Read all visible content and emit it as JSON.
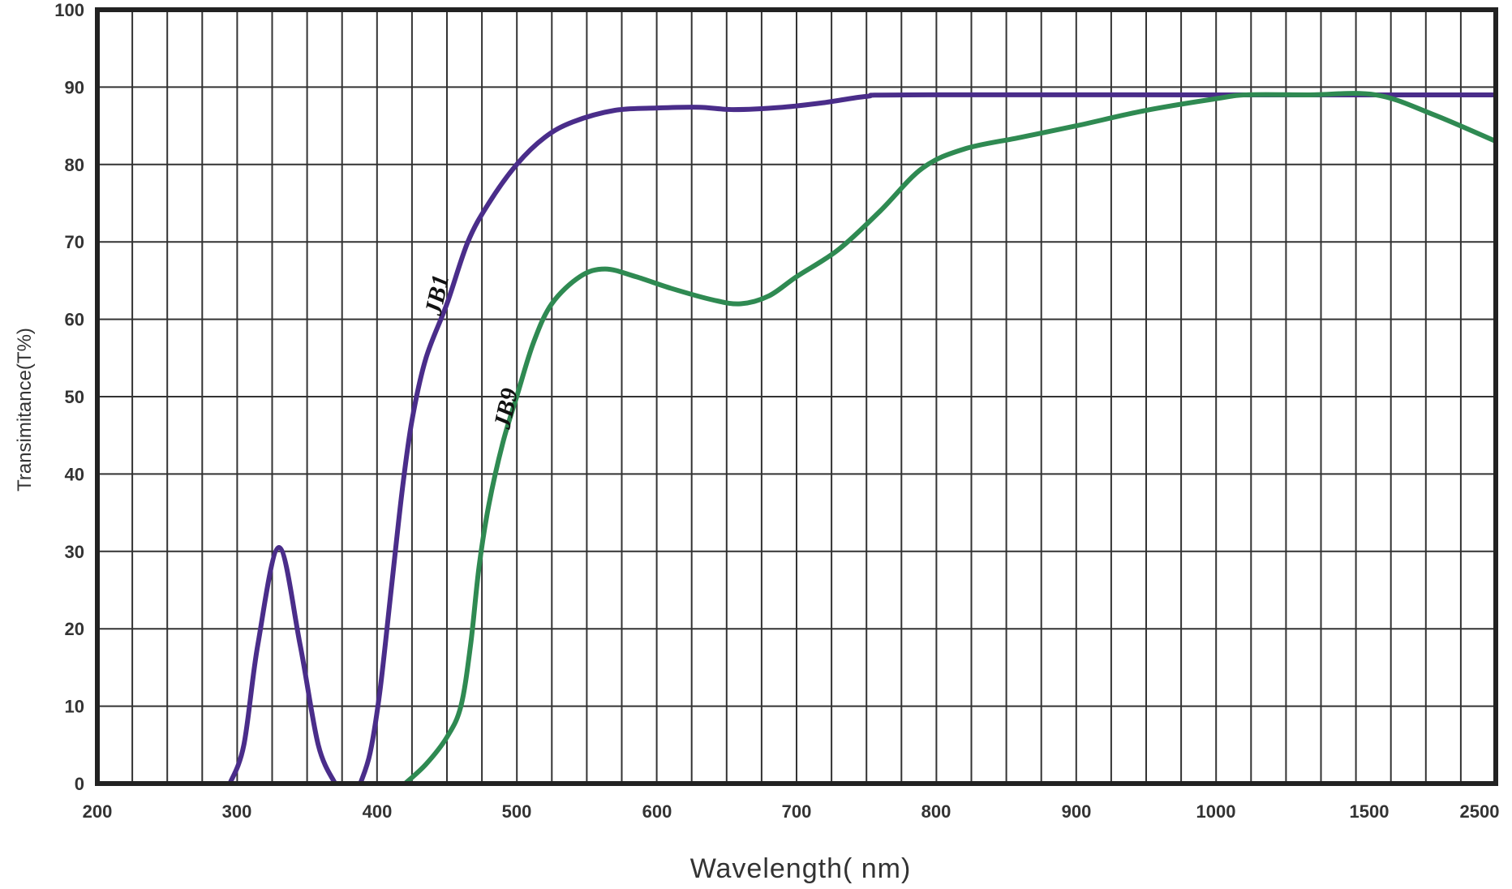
{
  "chart_data": {
    "type": "line",
    "title": "",
    "xlabel": "Wavelength( nm)",
    "ylabel": "Transimitance(T%)",
    "x_ticks": [
      200,
      300,
      400,
      500,
      600,
      700,
      800,
      900,
      1000,
      1500,
      2500
    ],
    "x_tick_labels": [
      "200",
      "300",
      "400",
      "500",
      "600",
      "700",
      "800",
      "900",
      "1000",
      "1500",
      "2500"
    ],
    "x_scale": "piecewise non-linear (uniform spacing 200-1000, compressed 1000-2500)",
    "y_ticks": [
      0,
      10,
      20,
      30,
      40,
      50,
      60,
      70,
      80,
      90,
      100
    ],
    "y_tick_labels": [
      "0",
      "10",
      "20",
      "30",
      "40",
      "50",
      "60",
      "70",
      "80",
      "90",
      "100"
    ],
    "xlim": [
      200,
      2500
    ],
    "ylim": [
      0,
      100
    ],
    "grid": true,
    "legend": "none (inline curve labels)",
    "series": [
      {
        "name": "JB1",
        "color": "#4a2d8a",
        "segments": [
          [
            [
              295,
              0
            ],
            [
              305,
              5
            ],
            [
              315,
              18
            ],
            [
              330,
              30.5
            ],
            [
              345,
              18
            ],
            [
              358,
              5
            ],
            [
              370,
              0
            ]
          ],
          [
            [
              388,
              0
            ],
            [
              395,
              4
            ],
            [
              402,
              12
            ],
            [
              410,
              25
            ],
            [
              418,
              38
            ],
            [
              425,
              47
            ],
            [
              435,
              55
            ],
            [
              450,
              62
            ],
            [
              465,
              70
            ],
            [
              480,
              75
            ],
            [
              500,
              80
            ],
            [
              520,
              83.5
            ],
            [
              540,
              85.5
            ],
            [
              570,
              87
            ],
            [
              600,
              87.3
            ],
            [
              630,
              87.4
            ],
            [
              655,
              87.1
            ],
            [
              690,
              87.4
            ],
            [
              720,
              88
            ],
            [
              750,
              88.8
            ],
            [
              780,
              89
            ],
            [
              1000,
              89
            ],
            [
              1500,
              89
            ],
            [
              2500,
              89
            ]
          ]
        ]
      },
      {
        "name": "JB9",
        "color": "#2f8a52",
        "segments": [
          [
            [
              420,
              0
            ],
            [
              435,
              2.5
            ],
            [
              450,
              6
            ],
            [
              460,
              10
            ],
            [
              467,
              18
            ],
            [
              473,
              28
            ],
            [
              480,
              36
            ],
            [
              490,
              44
            ],
            [
              500,
              50
            ],
            [
              512,
              57
            ],
            [
              525,
              62
            ],
            [
              545,
              65.5
            ],
            [
              563,
              66.5
            ],
            [
              585,
              65.5
            ],
            [
              610,
              64
            ],
            [
              640,
              62.5
            ],
            [
              660,
              62
            ],
            [
              680,
              63
            ],
            [
              700,
              65.5
            ],
            [
              730,
              69
            ],
            [
              760,
              74
            ],
            [
              790,
              79.5
            ],
            [
              820,
              82
            ],
            [
              860,
              83.5
            ],
            [
              900,
              85
            ],
            [
              950,
              87
            ],
            [
              1000,
              88.5
            ],
            [
              1100,
              89
            ],
            [
              1300,
              89
            ],
            [
              1550,
              89
            ],
            [
              2000,
              86.5
            ],
            [
              2500,
              83
            ]
          ]
        ]
      }
    ]
  }
}
